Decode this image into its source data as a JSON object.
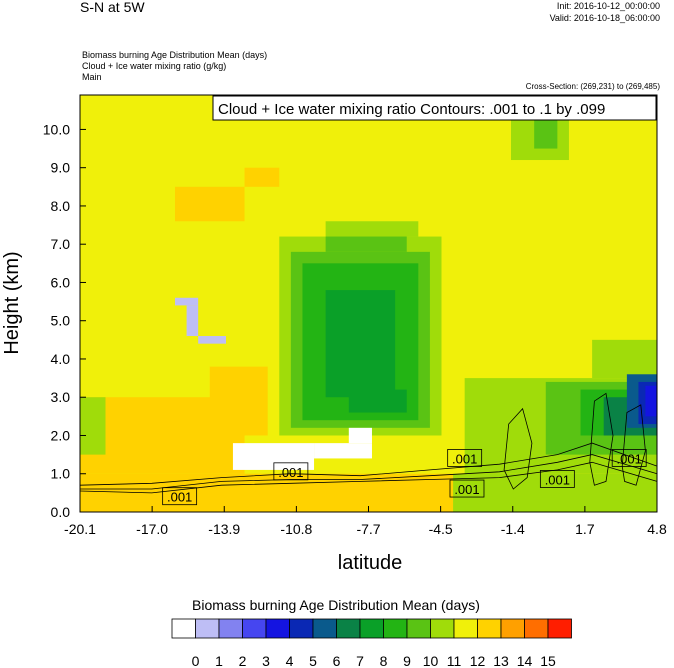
{
  "header": {
    "title": "S-N at 5W",
    "init": "Init: 2016-10-12_00:00:00",
    "valid": "Valid: 2016-10-18_06:00:00",
    "field1": "Biomass burning Age Distribution Mean   (days)",
    "field2": "Cloud + Ice water mixing ratio   (g/kg)",
    "field3": "Main",
    "cross_section": "Cross-Section: (269,231) to (269,485)"
  },
  "chart_data": {
    "type": "heatmap",
    "contour_info": "Cloud + Ice water mixing ratio Contours: .001 to .1 by .099",
    "xlabel": "latitude",
    "ylabel": "Height (km)",
    "xlim": [
      -20.1,
      4.8
    ],
    "ylim": [
      0.0,
      10.9
    ],
    "x_ticks": [
      "-20.1",
      "-17.0",
      "-13.9",
      "-10.8",
      "-7.7",
      "-4.5",
      "-1.4",
      "1.7",
      "4.8"
    ],
    "y_ticks": [
      "0.0",
      "1.0",
      "2.0",
      "3.0",
      "4.0",
      "5.0",
      "6.0",
      "7.0",
      "8.0",
      "9.0",
      "10.0"
    ],
    "contour_labels": [
      ".001",
      ".001",
      ".001",
      ".001",
      ".001",
      ".001"
    ],
    "colorbar": {
      "title": "Biomass burning Age Distribution Mean  (days)",
      "labels": [
        "0",
        "1",
        "2",
        "3",
        "4",
        "5",
        "6",
        "7",
        "8",
        "9",
        "10",
        "11",
        "12",
        "13",
        "14",
        "15"
      ],
      "colors": [
        "#ffffff",
        "#bebef5",
        "#8282f0",
        "#4646f0",
        "#1414e1",
        "#0a28b4",
        "#0a5a8c",
        "#0a8246",
        "#0aa028",
        "#23b414",
        "#5ac314",
        "#a0dc0a",
        "#f0f00a",
        "#ffd200",
        "#ffa000",
        "#ff6e00",
        "#ff1e00"
      ]
    },
    "regions": [
      {
        "level": 12,
        "x": [
          -20.1,
          4.8
        ],
        "y": [
          0.0,
          10.9
        ]
      },
      {
        "level": 13,
        "x": [
          -20.1,
          -4.0
        ],
        "y": [
          0.0,
          1.0
        ]
      },
      {
        "level": 13,
        "x": [
          -20.1,
          -13.0
        ],
        "y": [
          1.0,
          3.0
        ]
      },
      {
        "level": 13,
        "x": [
          -14.5,
          -12.0
        ],
        "y": [
          2.0,
          3.8
        ]
      },
      {
        "level": 13,
        "x": [
          -16.0,
          -13.0
        ],
        "y": [
          7.6,
          8.5
        ]
      },
      {
        "level": 13,
        "x": [
          -13.0,
          -11.5
        ],
        "y": [
          8.5,
          9.0
        ]
      },
      {
        "level": 11,
        "x": [
          -20.1,
          -19.0
        ],
        "y": [
          1.5,
          3.0
        ]
      },
      {
        "level": 11,
        "x": [
          -4.0,
          4.8
        ],
        "y": [
          0.0,
          1.0
        ]
      },
      {
        "level": 11,
        "x": [
          -1.5,
          1.0
        ],
        "y": [
          9.2,
          10.9
        ]
      },
      {
        "level": 11,
        "x": [
          -3.5,
          4.8
        ],
        "y": [
          1.0,
          3.5
        ]
      },
      {
        "level": 11,
        "x": [
          2.0,
          4.8
        ],
        "y": [
          3.5,
          4.5
        ]
      },
      {
        "level": 11,
        "x": [
          -11.5,
          -4.5
        ],
        "y": [
          2.0,
          7.2
        ]
      },
      {
        "level": 11,
        "x": [
          -9.5,
          -5.5
        ],
        "y": [
          7.2,
          7.6
        ]
      },
      {
        "level": 10,
        "x": [
          -11.0,
          -5.0
        ],
        "y": [
          2.2,
          6.8
        ]
      },
      {
        "level": 10,
        "x": [
          -9.5,
          -6.0
        ],
        "y": [
          6.8,
          7.2
        ]
      },
      {
        "level": 10,
        "x": [
          -0.5,
          0.5
        ],
        "y": [
          9.5,
          10.8
        ]
      },
      {
        "level": 10,
        "x": [
          0.0,
          4.8
        ],
        "y": [
          1.5,
          3.4
        ]
      },
      {
        "level": 9,
        "x": [
          -10.5,
          -5.5
        ],
        "y": [
          2.4,
          6.5
        ]
      },
      {
        "level": 9,
        "x": [
          1.5,
          4.8
        ],
        "y": [
          2.0,
          3.2
        ]
      },
      {
        "level": 8,
        "x": [
          -9.5,
          -6.5
        ],
        "y": [
          3.0,
          5.8
        ]
      },
      {
        "level": 8,
        "x": [
          -8.5,
          -6.0
        ],
        "y": [
          2.6,
          3.2
        ]
      },
      {
        "level": 7,
        "x": [
          2.5,
          4.8
        ],
        "y": [
          2.0,
          3.0
        ]
      },
      {
        "level": 6,
        "x": [
          3.5,
          4.8
        ],
        "y": [
          2.2,
          3.6
        ]
      },
      {
        "level": 5,
        "x": [
          4.0,
          4.8
        ],
        "y": [
          2.3,
          3.4
        ]
      },
      {
        "level": 4,
        "x": [
          4.3,
          4.8
        ],
        "y": [
          2.5,
          3.3
        ]
      },
      {
        "level": 1,
        "x": [
          -16.0,
          -15.0
        ],
        "y": [
          5.4,
          5.6
        ]
      },
      {
        "level": 1,
        "x": [
          -15.5,
          -15.0
        ],
        "y": [
          4.6,
          5.4
        ]
      },
      {
        "level": 1,
        "x": [
          -15.0,
          -13.8
        ],
        "y": [
          4.4,
          4.6
        ]
      },
      {
        "level": 0,
        "x": [
          -13.5,
          -10.0
        ],
        "y": [
          1.1,
          1.8
        ]
      },
      {
        "level": 0,
        "x": [
          -10.0,
          -7.5
        ],
        "y": [
          1.4,
          1.8
        ]
      },
      {
        "level": 0,
        "x": [
          -8.5,
          -7.5
        ],
        "y": [
          1.8,
          2.2
        ]
      }
    ]
  }
}
